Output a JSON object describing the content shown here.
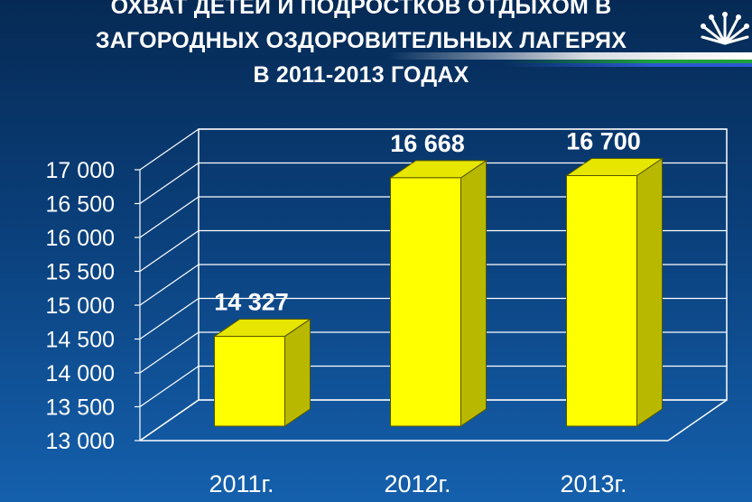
{
  "title_lines": [
    "ОХВАТ ДЕТЕЙ И ПОДРОСТКОВ ОТДЫХОМ В",
    "ЗАГОРОДНЫХ ОЗДОРОВИТЕЛЬНЫХ ЛАГЕРЯХ",
    "В 2011-2013 ГОДАХ"
  ],
  "logo_icon": "sunburst-logo-icon",
  "colors": {
    "bar_front": "#ffff00",
    "bar_side": "#b8b800",
    "bar_top": "#e6e600",
    "grid": "#ffffff",
    "text": "#ffffff"
  },
  "chart_data": {
    "type": "bar",
    "style": "3d",
    "title": "ОХВАТ ДЕТЕЙ И ПОДРОСТКОВ ОТДЫХОМ В ЗАГОРОДНЫХ ОЗДОРОВИТЕЛЬНЫХ ЛАГЕРЯХ В 2011-2013 ГОДАХ",
    "categories": [
      "2011г.",
      "2012г.",
      "2013г."
    ],
    "values": [
      14327,
      16668,
      16700
    ],
    "data_labels": [
      "14 327",
      "16 668",
      "16 700"
    ],
    "yticks": [
      13000,
      13500,
      14000,
      14500,
      15000,
      15500,
      16000,
      16500,
      17000
    ],
    "ytick_labels": [
      "13 000",
      "13 500",
      "14 000",
      "14 500",
      "15 000",
      "15 500",
      "16 000",
      "16 500",
      "17 000"
    ],
    "ylim": [
      13000,
      17000
    ],
    "grid": true,
    "legend": "none",
    "xlabel": "",
    "ylabel": ""
  }
}
